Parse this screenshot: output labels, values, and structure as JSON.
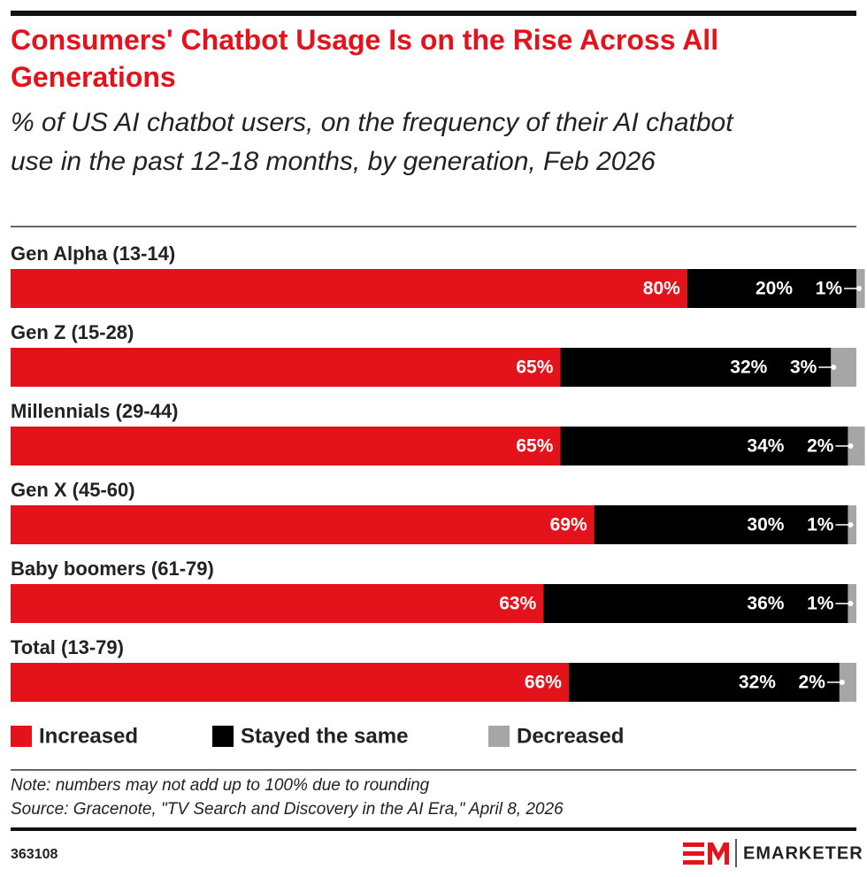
{
  "chart_data": {
    "type": "stacked-bar",
    "title": "Consumers' Chatbot Usage Is on the Rise Across All Generations",
    "subtitle": "% of US AI chatbot users, on the frequency of their AI chatbot use in the past 12-18 months, by generation, Feb 2026",
    "categories": [
      "Gen Alpha (13-14)",
      "Gen Z (15-28)",
      "Millennials (29-44)",
      "Gen X (45-60)",
      "Baby boomers (61-79)",
      "Total (13-79)"
    ],
    "series": [
      {
        "name": "Increased",
        "color": "#e3121b",
        "values": [
          80,
          65,
          65,
          69,
          63,
          66
        ],
        "value_labels": [
          "80%",
          "65%",
          "65%",
          "69%",
          "63%",
          "66%"
        ]
      },
      {
        "name": "Stayed the same",
        "color": "#000000",
        "values": [
          20,
          32,
          34,
          30,
          36,
          32
        ],
        "value_labels": [
          "20%",
          "32%",
          "34%",
          "30%",
          "36%",
          "32%"
        ]
      },
      {
        "name": "Decreased",
        "color": "#a6a6a6",
        "values": [
          1,
          3,
          2,
          1,
          1,
          2
        ],
        "value_labels": [
          "1%",
          "3%",
          "2%",
          "1%",
          "1%",
          "2%"
        ]
      }
    ],
    "xlim": [
      0,
      100
    ],
    "note": "Note: numbers may not add up to 100% due to rounding",
    "source": "Source: Gracenote, \"TV Search and Discovery in the AI Era,\" April 8, 2026",
    "chart_id": "363108",
    "brand": "EMARKETER"
  }
}
